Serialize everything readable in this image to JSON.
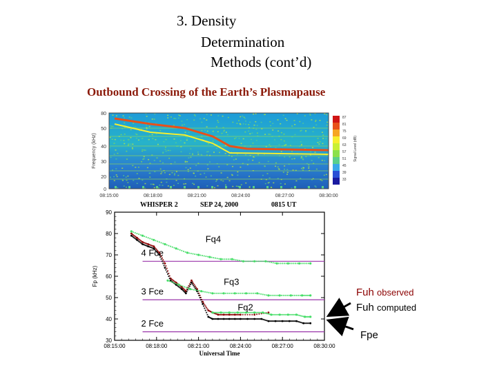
{
  "slide": {
    "title_lines": [
      "3. Density",
      "Determination",
      "Methods (cont’d)"
    ],
    "subtitle": "Outbound Crossing of the Earth’s Plasmapause"
  },
  "spectrogram": {
    "ylabel": "Frequency (kHz)",
    "yticks": [
      "80",
      "50",
      "40",
      "30",
      "20",
      "0"
    ],
    "xticks": [
      "08:15:00",
      "08:18:00",
      "08:21:00",
      "08:24:00",
      "08:27:00",
      "08:30:00"
    ],
    "caption_left": "WHISPER 2",
    "caption_mid": "SEP 24, 2000",
    "caption_right": "0815 UT",
    "colorbar_ticks": [
      "87",
      "81",
      "75",
      "69",
      "63",
      "57",
      "51",
      "45",
      "39",
      "33"
    ],
    "colorbar_label": "Signal Level (dB)",
    "colors": [
      "#1a1aa0",
      "#2a4fd6",
      "#3aa9e8",
      "#5ad08a",
      "#8be04a",
      "#c9f034",
      "#f7ef2e",
      "#f6a623",
      "#e8501a",
      "#d01515"
    ]
  },
  "chart_data": {
    "type": "scatter",
    "title": "",
    "xlabel": "Universal Time",
    "ylabel": "Fp (kHz)",
    "xticks": [
      "08:15:00",
      "08:18:00",
      "08:21:00",
      "08:24:00",
      "08:27:00",
      "08:30:00"
    ],
    "yticks": [
      "90",
      "80",
      "70",
      "60",
      "50",
      "40",
      "30"
    ],
    "xlim": [
      0,
      15
    ],
    "ylim": [
      30,
      90
    ],
    "grid": false,
    "series": [
      {
        "name": "Fuh observed",
        "color": "#8b0000",
        "x": [
          1.2,
          1.6,
          2.0,
          2.4,
          2.8,
          3.2,
          3.6,
          4.0,
          4.4,
          4.8,
          5.1,
          5.5,
          5.9,
          6.3,
          6.7,
          7.0,
          7.4,
          7.8,
          8.2,
          8.6,
          9.0,
          10.0,
          11.0
        ],
        "y": [
          80,
          78,
          76,
          75,
          74,
          71,
          66,
          59,
          57,
          55,
          53,
          58,
          54,
          48,
          44,
          43,
          42,
          42,
          42,
          42,
          42,
          42,
          43
        ]
      },
      {
        "name": "Fuh computed",
        "color": "#000000",
        "x": [
          1.2,
          1.6,
          2.0,
          2.4,
          2.8,
          3.2,
          3.6,
          4.0,
          4.4,
          4.8,
          5.1,
          5.5,
          5.9,
          6.3,
          6.7,
          7.0,
          7.4,
          7.8,
          8.2,
          8.6,
          9.0,
          9.5,
          10.0,
          10.5,
          11.0,
          11.5,
          12.0,
          12.5,
          13.0,
          13.5,
          14.0
        ],
        "y": [
          79,
          77,
          75,
          74,
          73,
          70,
          64,
          58,
          56,
          54,
          52,
          57,
          53,
          47,
          41,
          40,
          40,
          40,
          40,
          40,
          40,
          40,
          40,
          40,
          39,
          39,
          39,
          39,
          39,
          38,
          38
        ]
      },
      {
        "name": "Fq4",
        "color": "#44dd66",
        "x": [
          1.2,
          2.0,
          2.8,
          3.6,
          4.4,
          5.2,
          6.0,
          6.8,
          7.6,
          8.4,
          9.2,
          10.0,
          10.8,
          11.6,
          12.4,
          13.2,
          14.0
        ],
        "y": [
          81,
          79,
          77,
          75,
          73,
          71,
          70,
          69,
          68,
          68,
          67,
          67,
          67,
          66,
          66,
          66,
          66
        ]
      },
      {
        "name": "Fq3",
        "color": "#44dd66",
        "x": [
          3.8,
          4.6,
          5.4,
          6.2,
          7.0,
          7.8,
          8.6,
          9.4,
          10.2,
          11.0,
          11.8,
          12.6,
          13.4,
          14.0
        ],
        "y": [
          58,
          56,
          54,
          53,
          52,
          52,
          52,
          52,
          52,
          51,
          51,
          51,
          51,
          51
        ]
      },
      {
        "name": "Fq2",
        "color": "#44dd66",
        "x": [
          7.0,
          7.6,
          8.2,
          8.8,
          9.4,
          10.0,
          10.6,
          11.2,
          11.8,
          12.4,
          13.0,
          13.6,
          14.0
        ],
        "y": [
          43,
          43,
          43,
          43,
          43,
          43,
          43,
          42,
          42,
          42,
          42,
          41,
          41
        ]
      }
    ],
    "reference_lines": [
      {
        "label": "4 Fce",
        "y": 67,
        "color": "#9933aa"
      },
      {
        "label": "3 Fce",
        "y": 49,
        "color": "#9933aa"
      },
      {
        "label": "2 Fce",
        "y": 34,
        "color": "#9933aa"
      }
    ],
    "annotations": [
      {
        "label": "Fq4"
      },
      {
        "label": "Fq3"
      },
      {
        "label": "Fq2"
      }
    ]
  },
  "legend": {
    "observed_main": "Fuh",
    "observed_small": "observed",
    "computed_main": "Fuh",
    "computed_small": "computed",
    "fpe": "Fpe"
  }
}
